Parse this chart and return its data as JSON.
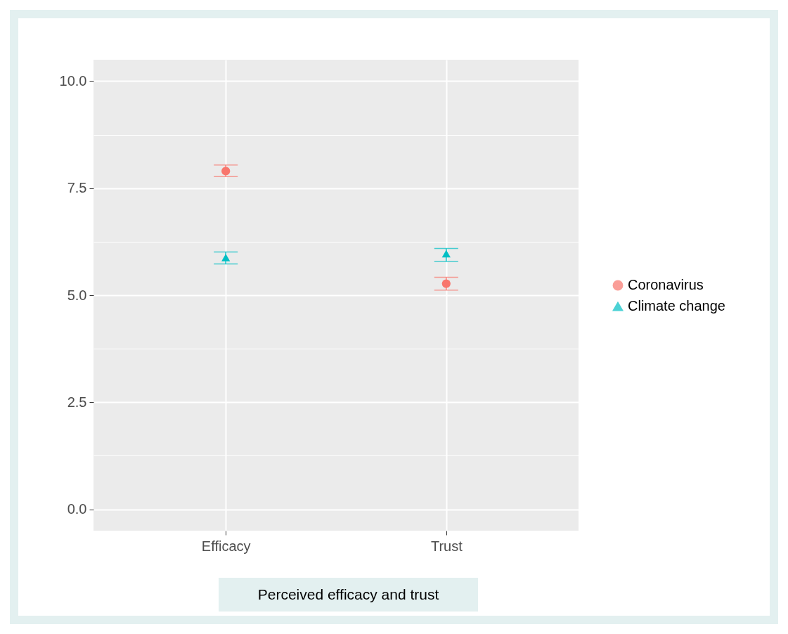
{
  "chart_data": {
    "type": "scatter",
    "categories": [
      "Efficacy",
      "Trust"
    ],
    "series": [
      {
        "name": "Coronavirus",
        "color": "#f8766d",
        "marker": "circle",
        "values": [
          7.9,
          5.27
        ],
        "errors": [
          [
            7.77,
            8.04
          ],
          [
            5.12,
            5.42
          ]
        ]
      },
      {
        "name": "Climate change",
        "color": "#00bfc4",
        "marker": "triangle",
        "values": [
          5.88,
          5.97
        ],
        "errors": [
          [
            5.73,
            6.01
          ],
          [
            5.79,
            6.09
          ]
        ]
      }
    ],
    "ylim": [
      -0.5,
      10.5
    ],
    "yticks": [
      {
        "value": 0,
        "label": "0.0"
      },
      {
        "value": 2.5,
        "label": "2.5"
      },
      {
        "value": 5,
        "label": "5.0"
      },
      {
        "value": 7.5,
        "label": "7.5"
      },
      {
        "value": 10,
        "label": "10.0"
      }
    ],
    "grid": true,
    "legend": "right",
    "annotations": [
      "Perceived efficacy and trust"
    ]
  }
}
